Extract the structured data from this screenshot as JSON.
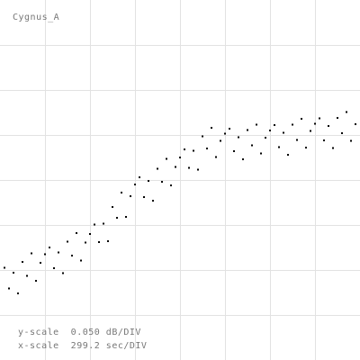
{
  "chart_data": {
    "type": "scatter",
    "title": "Cygnus_A",
    "y_scale_label": "y-scale  0.050 dB/DIV",
    "x_scale_label": "x-scale  299.2 sec/DIV",
    "xlim": [
      0,
      8
    ],
    "ylim": [
      0,
      8
    ],
    "xticks": [
      1,
      2,
      3,
      4,
      5,
      6,
      7
    ],
    "yticks": [
      1,
      2,
      3,
      4,
      5,
      6,
      7
    ],
    "grid": true,
    "color": "#000000",
    "x": [
      0.1,
      0.2,
      0.3,
      0.4,
      0.5,
      0.6,
      0.7,
      0.8,
      0.9,
      1.0,
      1.1,
      1.2,
      1.3,
      1.4,
      1.5,
      1.6,
      1.7,
      1.8,
      1.9,
      2.0,
      2.1,
      2.2,
      2.3,
      2.4,
      2.5,
      2.6,
      2.7,
      2.8,
      2.9,
      3.0,
      3.1,
      3.2,
      3.3,
      3.4,
      3.5,
      3.6,
      3.7,
      3.8,
      3.9,
      4.0,
      4.1,
      4.2,
      4.3,
      4.4,
      4.5,
      4.6,
      4.7,
      4.8,
      4.9,
      5.0,
      5.1,
      5.2,
      5.3,
      5.4,
      5.5,
      5.6,
      5.7,
      5.8,
      5.9,
      6.0,
      6.1,
      6.2,
      6.3,
      6.4,
      6.5,
      6.6,
      6.7,
      6.8,
      6.9,
      7.0,
      7.1,
      7.2,
      7.3,
      7.4,
      7.5,
      7.6,
      7.7,
      7.8,
      7.9
    ],
    "values": [
      2.05,
      1.59,
      1.94,
      1.48,
      2.18,
      1.87,
      2.37,
      1.76,
      2.16,
      2.35,
      2.5,
      2.04,
      2.39,
      1.93,
      2.63,
      2.32,
      2.82,
      2.21,
      2.61,
      2.8,
      3.01,
      2.62,
      3.03,
      2.64,
      3.4,
      3.16,
      3.72,
      3.18,
      3.64,
      3.9,
      4.06,
      3.62,
      3.98,
      3.54,
      4.25,
      3.96,
      4.47,
      3.88,
      4.29,
      4.5,
      4.68,
      4.27,
      4.65,
      4.23,
      4.97,
      4.7,
      5.16,
      4.51,
      4.87,
      5.03,
      5.14,
      4.64,
      4.95,
      4.46,
      5.11,
      4.77,
      5.23,
      4.59,
      4.94,
      5.1,
      5.22,
      4.73,
      5.05,
      4.56,
      5.23,
      4.89,
      5.36,
      4.72,
      5.09,
      5.25,
      5.37,
      4.88,
      5.2,
      4.71,
      5.38,
      5.04,
      5.51,
      4.87,
      5.24
    ]
  }
}
